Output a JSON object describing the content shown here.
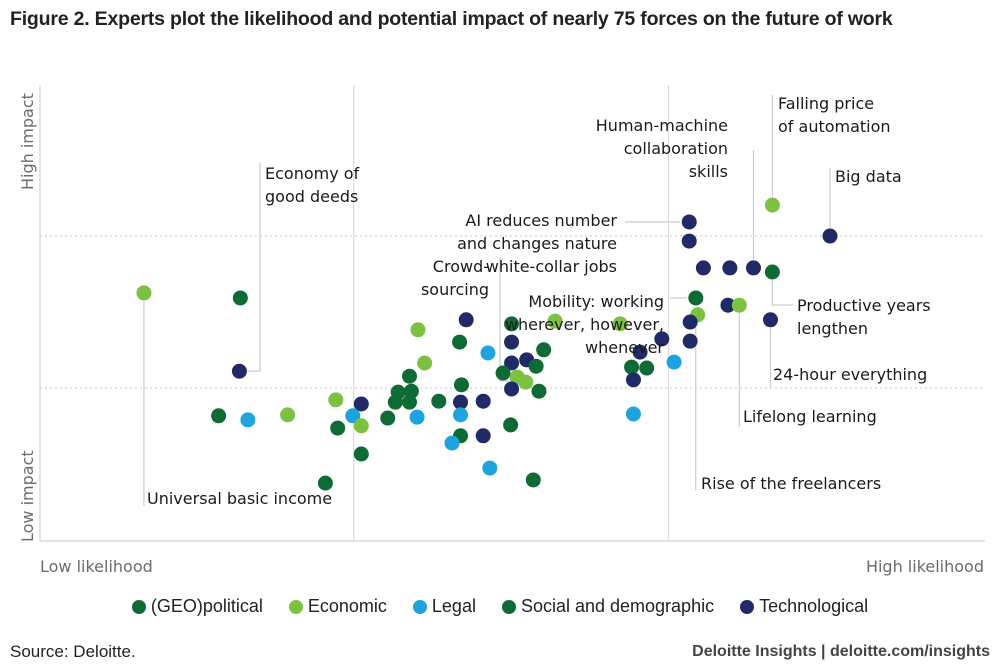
{
  "chart_data": {
    "type": "scatter",
    "title": "Figure 2. Experts plot the likelihood and potential impact of nearly 75 forces on the future of work",
    "xlabel_low": "Low likelihood",
    "xlabel_high": "High likelihood",
    "ylabel_low": "Low impact",
    "ylabel_high": "High impact",
    "xlim": [
      0,
      100
    ],
    "ylim": [
      0,
      100
    ],
    "grid": {
      "vertical": [
        33.2,
        66.5
      ],
      "horizontal_dashed": [
        66.8,
        33.4
      ]
    },
    "legend_position": "bottom-center",
    "categories": [
      {
        "key": "geo",
        "name": "(GEO)political",
        "color": "#0f6b35"
      },
      {
        "key": "eco",
        "name": "Economic",
        "color": "#7dc142"
      },
      {
        "key": "leg",
        "name": "Legal",
        "color": "#1ea3df"
      },
      {
        "key": "soc",
        "name": "Social and demographic",
        "color": "#0f6b35"
      },
      {
        "key": "tec",
        "name": "Technological",
        "color": "#1f2a66"
      }
    ],
    "points": [
      {
        "c": "eco",
        "x": 11.0,
        "y": 54.3
      },
      {
        "c": "soc",
        "x": 21.2,
        "y": 53.2
      },
      {
        "c": "tec",
        "x": 21.1,
        "y": 37.1
      },
      {
        "c": "soc",
        "x": 18.9,
        "y": 27.3
      },
      {
        "c": "leg",
        "x": 22.0,
        "y": 26.4
      },
      {
        "c": "eco",
        "x": 26.2,
        "y": 27.5
      },
      {
        "c": "soc",
        "x": 30.2,
        "y": 12.5
      },
      {
        "c": "eco",
        "x": 31.3,
        "y": 30.8
      },
      {
        "c": "tec",
        "x": 34.0,
        "y": 29.9
      },
      {
        "c": "leg",
        "x": 33.1,
        "y": 27.3
      },
      {
        "c": "soc",
        "x": 31.5,
        "y": 24.6
      },
      {
        "c": "eco",
        "x": 34.0,
        "y": 25.1
      },
      {
        "c": "soc",
        "x": 34.0,
        "y": 18.9
      },
      {
        "c": "soc",
        "x": 36.8,
        "y": 26.8
      },
      {
        "c": "soc",
        "x": 37.9,
        "y": 32.5
      },
      {
        "c": "soc",
        "x": 39.1,
        "y": 36.0
      },
      {
        "c": "soc",
        "x": 39.3,
        "y": 32.7
      },
      {
        "c": "soc",
        "x": 37.6,
        "y": 30.3
      },
      {
        "c": "soc",
        "x": 39.1,
        "y": 30.3
      },
      {
        "c": "leg",
        "x": 39.9,
        "y": 27.0
      },
      {
        "c": "eco",
        "x": 40.0,
        "y": 46.2
      },
      {
        "c": "eco",
        "x": 40.7,
        "y": 38.9
      },
      {
        "c": "soc",
        "x": 42.2,
        "y": 30.5
      },
      {
        "c": "soc",
        "x": 44.4,
        "y": 43.5
      },
      {
        "c": "tec",
        "x": 45.1,
        "y": 48.4
      },
      {
        "c": "soc",
        "x": 44.6,
        "y": 34.1
      },
      {
        "c": "tec",
        "x": 44.5,
        "y": 30.3
      },
      {
        "c": "leg",
        "x": 44.5,
        "y": 27.5
      },
      {
        "c": "soc",
        "x": 44.5,
        "y": 22.9
      },
      {
        "c": "leg",
        "x": 43.6,
        "y": 21.3
      },
      {
        "c": "tec",
        "x": 46.9,
        "y": 30.5
      },
      {
        "c": "tec",
        "x": 46.9,
        "y": 22.9
      },
      {
        "c": "leg",
        "x": 47.6,
        "y": 15.8
      },
      {
        "c": "leg",
        "x": 47.4,
        "y": 41.1
      },
      {
        "c": "soc",
        "x": 49.9,
        "y": 47.5
      },
      {
        "c": "tec",
        "x": 49.9,
        "y": 43.5
      },
      {
        "c": "tec",
        "x": 49.9,
        "y": 38.9
      },
      {
        "c": "tec",
        "x": 51.5,
        "y": 39.6
      },
      {
        "c": "soc",
        "x": 49.0,
        "y": 36.7
      },
      {
        "c": "eco",
        "x": 50.5,
        "y": 35.8
      },
      {
        "c": "eco",
        "x": 51.4,
        "y": 34.7
      },
      {
        "c": "tec",
        "x": 49.9,
        "y": 33.2
      },
      {
        "c": "soc",
        "x": 53.3,
        "y": 41.8
      },
      {
        "c": "soc",
        "x": 52.5,
        "y": 38.2
      },
      {
        "c": "soc",
        "x": 52.8,
        "y": 32.7
      },
      {
        "c": "soc",
        "x": 49.8,
        "y": 25.3
      },
      {
        "c": "soc",
        "x": 52.2,
        "y": 13.2
      },
      {
        "c": "eco",
        "x": 54.5,
        "y": 48.1
      },
      {
        "c": "eco",
        "x": 61.4,
        "y": 47.5
      },
      {
        "c": "tec",
        "x": 63.5,
        "y": 41.3
      },
      {
        "c": "soc",
        "x": 62.6,
        "y": 38.0
      },
      {
        "c": "soc",
        "x": 64.2,
        "y": 37.8
      },
      {
        "c": "tec",
        "x": 62.8,
        "y": 35.2
      },
      {
        "c": "leg",
        "x": 62.8,
        "y": 27.7
      },
      {
        "c": "tec",
        "x": 65.8,
        "y": 44.2
      },
      {
        "c": "leg",
        "x": 67.1,
        "y": 39.1
      },
      {
        "c": "tec",
        "x": 68.7,
        "y": 69.9
      },
      {
        "c": "tec",
        "x": 68.7,
        "y": 65.7
      },
      {
        "c": "tec",
        "x": 70.2,
        "y": 59.8
      },
      {
        "c": "soc",
        "x": 69.4,
        "y": 53.2
      },
      {
        "c": "eco",
        "x": 69.6,
        "y": 49.5
      },
      {
        "c": "tec",
        "x": 68.8,
        "y": 47.9
      },
      {
        "c": "tec",
        "x": 68.8,
        "y": 43.7
      },
      {
        "c": "tec",
        "x": 73.0,
        "y": 59.8
      },
      {
        "c": "tec",
        "x": 75.5,
        "y": 59.8
      },
      {
        "c": "soc",
        "x": 77.5,
        "y": 58.9
      },
      {
        "c": "tec",
        "x": 72.8,
        "y": 51.6
      },
      {
        "c": "eco",
        "x": 74.0,
        "y": 51.6
      },
      {
        "c": "tec",
        "x": 77.3,
        "y": 48.4
      },
      {
        "c": "eco",
        "x": 77.5,
        "y": 73.6
      },
      {
        "c": "tec",
        "x": 83.6,
        "y": 66.8
      }
    ],
    "annotations": [
      {
        "text": [
          "Universal basic income"
        ],
        "target": 0
      },
      {
        "text": [
          "Economy of",
          "good deeds"
        ],
        "target": 2
      },
      {
        "text": [
          "Crowd-",
          "sourcing"
        ],
        "target": 41
      },
      {
        "text": [
          "AI reduces number",
          "and changes nature",
          "white-collar jobs"
        ],
        "target": 56
      },
      {
        "text": [
          "Mobility: working",
          "wherever, however,",
          "whenever"
        ],
        "target": 59
      },
      {
        "text": [
          "Human-machine",
          "collaboration",
          "skills"
        ],
        "target": 64
      },
      {
        "text": [
          "Falling price",
          "of automation"
        ],
        "target": 69
      },
      {
        "text": [
          "Big data"
        ],
        "target": 70
      },
      {
        "text": [
          "Productive years",
          "lengthen"
        ],
        "target": 65
      },
      {
        "text": [
          "24-hour everything"
        ],
        "target": 68
      },
      {
        "text": [
          "Lifelong learning"
        ],
        "target": 67
      },
      {
        "text": [
          "Rise of the freelancers"
        ],
        "target": 60
      }
    ]
  },
  "footer": {
    "source": "Source: Deloitte.",
    "credit": "Deloitte Insights | deloitte.com/insights"
  }
}
